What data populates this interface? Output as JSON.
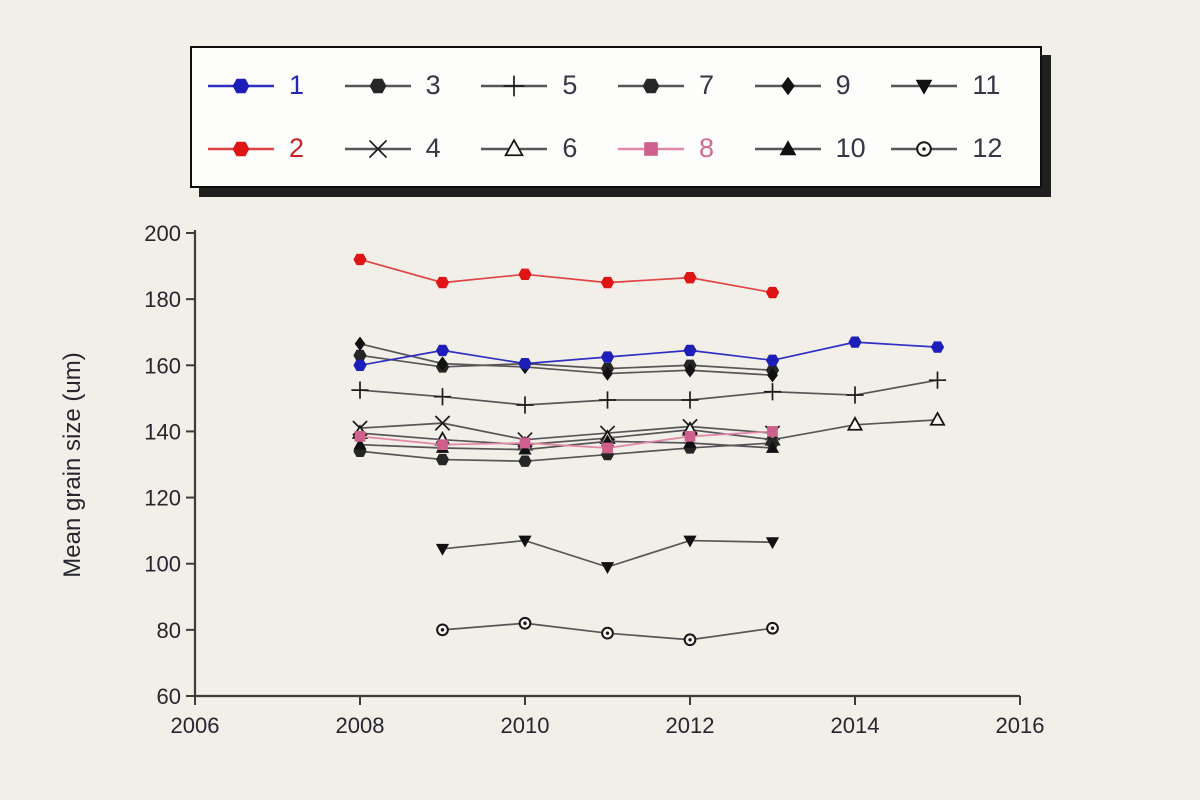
{
  "colors": {
    "background": "#f2efe9",
    "axis": "#3c3c3c",
    "tick_label": "#26262e",
    "legend_border": "#0e0e0e",
    "legend_shadow": "#1f1f1f",
    "blue": "#1d1db8",
    "red": "#df1414",
    "pink": "#cf5f8d",
    "dark": "#161616"
  },
  "chart_data": {
    "type": "line",
    "title": "",
    "xlabel": "",
    "ylabel": "Mean grain size (um)",
    "xlim": [
      2006,
      2016
    ],
    "ylim": [
      60,
      200
    ],
    "x_ticks": [
      2006,
      2008,
      2010,
      2012,
      2014,
      2016
    ],
    "y_ticks": [
      60,
      80,
      100,
      120,
      140,
      160,
      180,
      200
    ],
    "grid": false,
    "legend_position": "top",
    "legend_rows": [
      [
        "1",
        "3",
        "5",
        "7",
        "9",
        "11"
      ],
      [
        "2",
        "4",
        "6",
        "8",
        "10",
        "12"
      ]
    ],
    "draw_order": [
      "5",
      "4",
      "6",
      "7",
      "10",
      "3",
      "9",
      "11",
      "12",
      "8",
      "1",
      "2"
    ],
    "series": [
      {
        "name": "1",
        "marker": "hexagon",
        "line_color": "#2f2fc4",
        "marker_color": "#1d1db8",
        "label_color": "#2626b2",
        "x": [
          2008,
          2009,
          2010,
          2011,
          2012,
          2013,
          2014,
          2015
        ],
        "y": [
          160,
          164.5,
          160.5,
          162.5,
          164.5,
          161.5,
          167,
          165.5
        ]
      },
      {
        "name": "2",
        "marker": "hexagon",
        "line_color": "#e04444",
        "marker_color": "#df1414",
        "label_color": "#c52222",
        "x": [
          2008,
          2009,
          2010,
          2011,
          2012,
          2013
        ],
        "y": [
          192,
          185,
          187.5,
          185,
          186.5,
          182
        ]
      },
      {
        "name": "3",
        "marker": "hexagon",
        "line_color": "#565656",
        "marker_color": "#262626",
        "label_color": "#3a3444",
        "x": [
          2008,
          2009,
          2010,
          2011,
          2012,
          2013
        ],
        "y": [
          163,
          159.5,
          160.5,
          159,
          160,
          158.5
        ]
      },
      {
        "name": "4",
        "marker": "x",
        "line_color": "#565656",
        "marker_color": "#1c1c1c",
        "label_color": "#3a3444",
        "x": [
          2008,
          2009,
          2010,
          2011,
          2012,
          2013
        ],
        "y": [
          141,
          142.5,
          137.5,
          139.5,
          141.5,
          139.5
        ]
      },
      {
        "name": "5",
        "marker": "plus",
        "line_color": "#565656",
        "marker_color": "#1c1c1c",
        "label_color": "#3a3444",
        "x": [
          2008,
          2009,
          2010,
          2011,
          2012,
          2013,
          2014,
          2015
        ],
        "y": [
          152.5,
          150.5,
          148,
          149.5,
          149.5,
          152,
          151,
          155.5
        ]
      },
      {
        "name": "6",
        "marker": "triangle-open",
        "line_color": "#565656",
        "marker_color": "#161616",
        "label_color": "#3a3444",
        "x": [
          2008,
          2009,
          2010,
          2011,
          2012,
          2013,
          2014,
          2015
        ],
        "y": [
          139.5,
          137.5,
          136,
          138,
          140.5,
          137.5,
          142,
          143.5
        ]
      },
      {
        "name": "7",
        "marker": "hexagon",
        "line_color": "#565656",
        "marker_color": "#262626",
        "label_color": "#3a3444",
        "x": [
          2008,
          2009,
          2010,
          2011,
          2012,
          2013
        ],
        "y": [
          134,
          131.5,
          131,
          133,
          135,
          136.5
        ]
      },
      {
        "name": "8",
        "marker": "square",
        "line_color": "#e287a7",
        "marker_color": "#cf5f8d",
        "label_color": "#d06a93",
        "x": [
          2008,
          2009,
          2010,
          2011,
          2012,
          2013
        ],
        "y": [
          138.5,
          136,
          136.5,
          135,
          138.5,
          140
        ]
      },
      {
        "name": "9",
        "marker": "diamond",
        "line_color": "#565656",
        "marker_color": "#111111",
        "label_color": "#3a3444",
        "x": [
          2008,
          2009,
          2010,
          2011,
          2012,
          2013
        ],
        "y": [
          166.5,
          160.5,
          159.5,
          157.5,
          158.5,
          157
        ]
      },
      {
        "name": "10",
        "marker": "triangle-up",
        "line_color": "#565656",
        "marker_color": "#111111",
        "label_color": "#3a3444",
        "x": [
          2008,
          2009,
          2010,
          2011,
          2012,
          2013
        ],
        "y": [
          136,
          135,
          134.5,
          137,
          136.5,
          135
        ]
      },
      {
        "name": "11",
        "marker": "triangle-down",
        "line_color": "#565656",
        "marker_color": "#111111",
        "label_color": "#3a3444",
        "x": [
          2009,
          2010,
          2011,
          2012,
          2013
        ],
        "y": [
          104.5,
          107,
          99,
          107,
          106.5
        ]
      },
      {
        "name": "12",
        "marker": "circle-open",
        "line_color": "#565656",
        "marker_color": "#161616",
        "label_color": "#3a3444",
        "x": [
          2009,
          2010,
          2011,
          2012,
          2013
        ],
        "y": [
          80,
          82,
          79,
          77,
          80.5
        ]
      }
    ]
  }
}
